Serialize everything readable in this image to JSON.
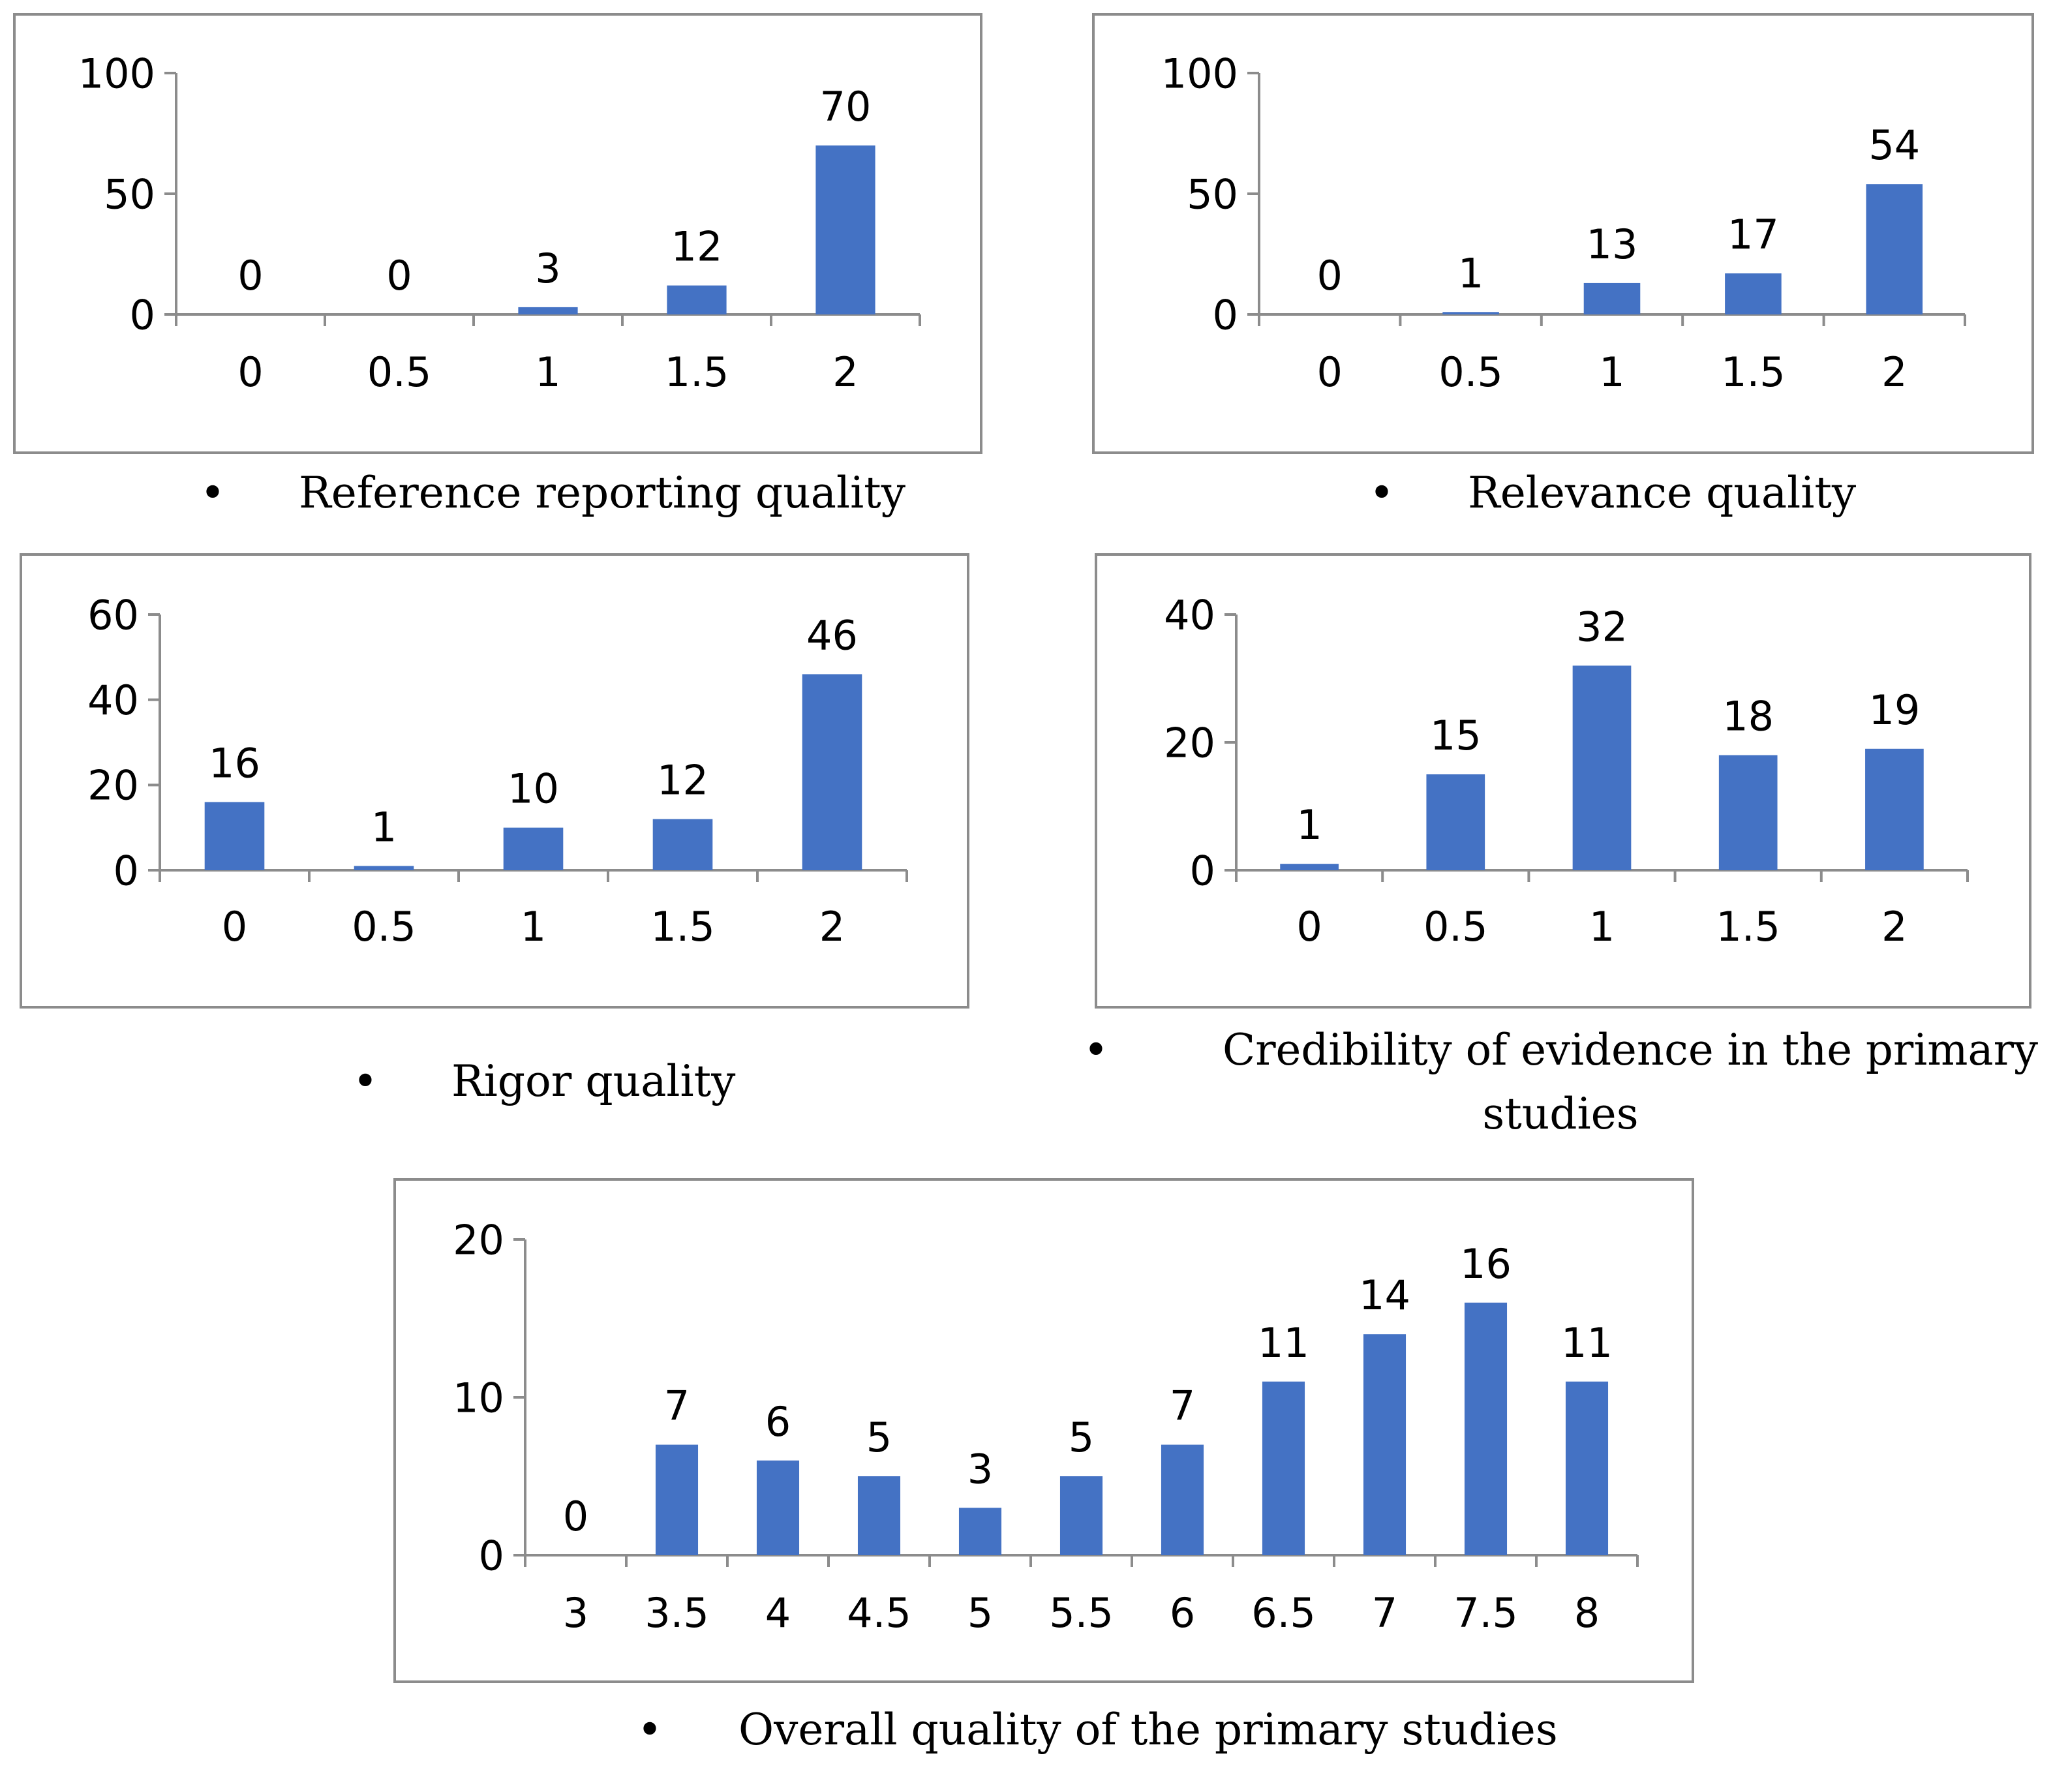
{
  "colors": {
    "bar": "#4472C4",
    "frame": "#8C8C8C",
    "axis": "#8C8C8C",
    "text": "#000000"
  },
  "bullet": "•",
  "chart_data": [
    {
      "type": "bar",
      "caption": "Reference reporting quality",
      "categories": [
        "0",
        "0.5",
        "1",
        "1.5",
        "2"
      ],
      "values": [
        0,
        0,
        3,
        12,
        70
      ],
      "yticks": [
        "0",
        "50",
        "100"
      ],
      "ylim": [
        0,
        100
      ],
      "grid": false,
      "legend": "none"
    },
    {
      "type": "bar",
      "caption": "Relevance quality",
      "categories": [
        "0",
        "0.5",
        "1",
        "1.5",
        "2"
      ],
      "values": [
        0,
        1,
        13,
        17,
        54
      ],
      "yticks": [
        "0",
        "50",
        "100"
      ],
      "ylim": [
        0,
        100
      ],
      "grid": false,
      "legend": "none"
    },
    {
      "type": "bar",
      "caption": "Rigor quality",
      "categories": [
        "0",
        "0.5",
        "1",
        "1.5",
        "2"
      ],
      "values": [
        16,
        1,
        10,
        12,
        46
      ],
      "yticks": [
        "0",
        "20",
        "40",
        "60"
      ],
      "ylim": [
        0,
        60
      ],
      "grid": false,
      "legend": "none"
    },
    {
      "type": "bar",
      "caption": "Credibility of evidence in the primary studies",
      "caption_lines": [
        "Credibility of evidence in the primary",
        "studies"
      ],
      "categories": [
        "0",
        "0.5",
        "1",
        "1.5",
        "2"
      ],
      "values": [
        1,
        15,
        32,
        18,
        19
      ],
      "yticks": [
        "0",
        "20",
        "40"
      ],
      "ylim": [
        0,
        40
      ],
      "grid": false,
      "legend": "none"
    },
    {
      "type": "bar",
      "caption": "Overall quality of the primary studies",
      "categories": [
        "3",
        "3.5",
        "4",
        "4.5",
        "5",
        "5.5",
        "6",
        "6.5",
        "7",
        "7.5",
        "8"
      ],
      "values": [
        0,
        7,
        6,
        5,
        3,
        5,
        7,
        11,
        14,
        16,
        11
      ],
      "yticks": [
        "0",
        "10",
        "20"
      ],
      "ylim": [
        0,
        20
      ],
      "grid": false,
      "legend": "none"
    }
  ]
}
